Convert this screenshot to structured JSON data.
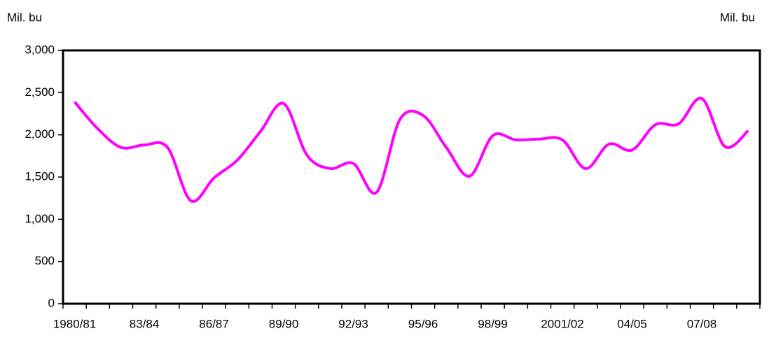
{
  "chart_data": {
    "type": "line",
    "y_label": "Mil. bu",
    "y2_label": "Mil. bu",
    "categories": [
      "1980/81",
      null,
      null,
      "83/84",
      null,
      null,
      "86/87",
      null,
      null,
      "89/90",
      null,
      null,
      "92/93",
      null,
      null,
      "95/96",
      null,
      null,
      "98/99",
      null,
      null,
      "2001/02",
      null,
      null,
      "04/05",
      null,
      null,
      "07/08",
      null,
      null
    ],
    "series": [
      {
        "color": "#ff00ff",
        "values": [
          2390,
          2070,
          1850,
          1880,
          1850,
          1220,
          1490,
          1700,
          2040,
          2370,
          1760,
          1600,
          1660,
          1320,
          2180,
          2230,
          1850,
          1510,
          1990,
          1940,
          1950,
          1940,
          1600,
          1890,
          1820,
          2120,
          2130,
          2430,
          1860,
          2050
        ]
      }
    ],
    "ylim": [
      0,
      3000
    ],
    "yticks": [
      0,
      500,
      {
        "value": 1000,
        "label": "1,000"
      },
      {
        "value": 1500,
        "label": "1,500"
      },
      {
        "value": 2000,
        "label": "2,000"
      },
      {
        "value": 2500,
        "label": "2,500"
      },
      {
        "value": 3000,
        "label": "3,000"
      }
    ]
  }
}
